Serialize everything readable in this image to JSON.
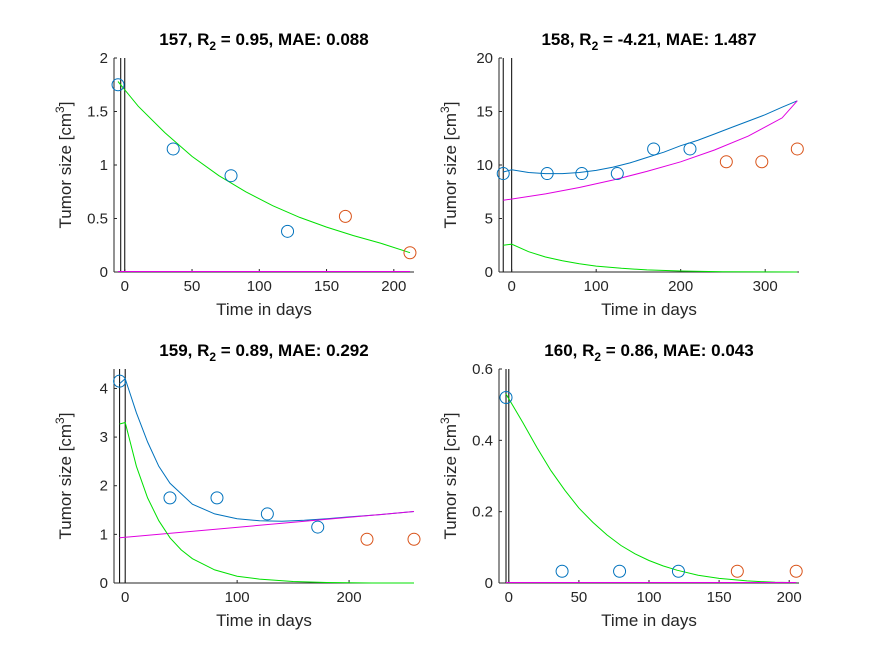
{
  "colors": {
    "measured": "#0072BD",
    "validation": "#D95319",
    "total": "#0072BD",
    "sensitive": "#00E000",
    "resistant": "#E000E0"
  },
  "chart_data": [
    {
      "type": "line",
      "title_id": "157",
      "title_r2": "= 0.95, MAE: 0.088",
      "xlabel": "Time in days",
      "ylabel": "Tumor size [cm",
      "ylabel_sup": "3",
      "ylabel_end": "]",
      "xlim": [
        -8,
        215
      ],
      "ylim": [
        0,
        2
      ],
      "xticks": [
        0,
        50,
        100,
        150,
        200
      ],
      "xtick_labels": [
        "0",
        "50",
        "100",
        "150",
        "200"
      ],
      "yticks": [
        0,
        0.5,
        1,
        1.5,
        2
      ],
      "ytick_labels": [
        "0",
        "0.5",
        "1",
        "1.5",
        "2"
      ],
      "vlines": [
        -3,
        0
      ],
      "measured": {
        "x": [
          -5,
          36,
          79,
          121
        ],
        "y": [
          1.75,
          1.15,
          0.9,
          0.38
        ]
      },
      "validation": {
        "x": [
          164,
          212
        ],
        "y": [
          0.52,
          0.18
        ]
      },
      "series": [
        {
          "key": "sensitive",
          "x": [
            -5,
            10,
            30,
            50,
            70,
            90,
            110,
            130,
            150,
            170,
            190,
            212
          ],
          "y": [
            1.78,
            1.55,
            1.3,
            1.08,
            0.9,
            0.75,
            0.62,
            0.51,
            0.42,
            0.34,
            0.27,
            0.18
          ]
        },
        {
          "key": "resistant",
          "x": [
            -5,
            212
          ],
          "y": [
            0.005,
            0.005
          ]
        }
      ]
    },
    {
      "type": "line",
      "title_id": "158",
      "title_r2": "= -4.21, MAE: 1.487",
      "xlabel": "Time in days",
      "ylabel": "Tumor size [cm",
      "ylabel_sup": "3",
      "ylabel_end": "]",
      "xlim": [
        -15,
        340
      ],
      "ylim": [
        0,
        20
      ],
      "xticks": [
        0,
        100,
        200,
        300
      ],
      "xtick_labels": [
        "0",
        "100",
        "200",
        "300"
      ],
      "yticks": [
        0,
        5,
        10,
        15,
        20
      ],
      "ytick_labels": [
        "0",
        "5",
        "10",
        "15",
        "20"
      ],
      "vlines": [
        -10,
        0
      ],
      "measured": {
        "x": [
          -10,
          42,
          83,
          125,
          168,
          211
        ],
        "y": [
          9.2,
          9.2,
          9.2,
          9.2,
          11.5,
          11.5
        ]
      },
      "validation": {
        "x": [
          254,
          296,
          338
        ],
        "y": [
          10.3,
          10.3,
          11.5
        ]
      },
      "series": [
        {
          "key": "total",
          "x": [
            -10,
            0,
            20,
            40,
            60,
            80,
            100,
            120,
            140,
            160,
            180,
            200,
            220,
            240,
            260,
            280,
            300,
            320,
            338
          ],
          "y": [
            9.35,
            9.55,
            9.3,
            9.2,
            9.2,
            9.3,
            9.5,
            9.8,
            10.2,
            10.7,
            11.2,
            11.8,
            12.3,
            12.9,
            13.5,
            14.1,
            14.7,
            15.4,
            16.0
          ]
        },
        {
          "key": "resistant",
          "x": [
            -10,
            40,
            80,
            120,
            160,
            200,
            240,
            280,
            320,
            338
          ],
          "y": [
            6.7,
            7.3,
            7.9,
            8.6,
            9.4,
            10.3,
            11.4,
            12.7,
            14.4,
            16.0
          ]
        },
        {
          "key": "sensitive",
          "x": [
            -10,
            0,
            20,
            40,
            60,
            80,
            100,
            130,
            160,
            200,
            250,
            338
          ],
          "y": [
            2.5,
            2.6,
            1.9,
            1.4,
            1.05,
            0.78,
            0.55,
            0.35,
            0.2,
            0.09,
            0.03,
            0.0
          ]
        }
      ]
    },
    {
      "type": "line",
      "title_id": "159",
      "title_r2": "= 0.89, MAE: 0.292",
      "xlabel": "Time in days",
      "ylabel": "Tumor size [cm",
      "ylabel_sup": "3",
      "ylabel_end": "]",
      "xlim": [
        -10,
        258
      ],
      "ylim": [
        0,
        4.4
      ],
      "xticks": [
        0,
        100,
        200
      ],
      "xtick_labels": [
        "0",
        "100",
        "200"
      ],
      "yticks": [
        0,
        1,
        2,
        3,
        4
      ],
      "ytick_labels": [
        "0",
        "1",
        "2",
        "3",
        "4"
      ],
      "vlines": [
        -5,
        0
      ],
      "measured": {
        "x": [
          -5,
          40,
          82,
          127,
          172
        ],
        "y": [
          4.15,
          1.75,
          1.75,
          1.42,
          1.15
        ]
      },
      "validation": {
        "x": [
          216,
          258
        ],
        "y": [
          0.9,
          0.9
        ]
      },
      "series": [
        {
          "key": "total",
          "x": [
            -5,
            0,
            10,
            20,
            30,
            40,
            60,
            80,
            100,
            120,
            140,
            160,
            180,
            200,
            230,
            258
          ],
          "y": [
            4.1,
            4.2,
            3.5,
            2.9,
            2.4,
            2.05,
            1.62,
            1.42,
            1.32,
            1.28,
            1.27,
            1.29,
            1.32,
            1.36,
            1.41,
            1.47
          ]
        },
        {
          "key": "resistant",
          "x": [
            -5,
            258
          ],
          "y": [
            0.93,
            1.47
          ]
        },
        {
          "key": "sensitive",
          "x": [
            -5,
            0,
            10,
            20,
            30,
            40,
            50,
            60,
            80,
            100,
            120,
            150,
            180,
            220,
            258
          ],
          "y": [
            3.27,
            3.3,
            2.4,
            1.75,
            1.28,
            0.93,
            0.68,
            0.5,
            0.27,
            0.14,
            0.08,
            0.03,
            0.01,
            0.0,
            0.0
          ]
        }
      ]
    },
    {
      "type": "line",
      "title_id": "160",
      "title_r2": "= 0.86, MAE: 0.043",
      "xlabel": "Time in days",
      "ylabel": "Tumor size [cm",
      "ylabel_sup": "3",
      "ylabel_end": "]",
      "xlim": [
        -7,
        207
      ],
      "ylim": [
        0,
        0.6
      ],
      "xticks": [
        0,
        50,
        100,
        150,
        200
      ],
      "xtick_labels": [
        "0",
        "50",
        "100",
        "150",
        "200"
      ],
      "yticks": [
        0,
        0.2,
        0.4,
        0.6
      ],
      "ytick_labels": [
        "0",
        "0.2",
        "0.4",
        "0.6"
      ],
      "vlines": [
        -2,
        0
      ],
      "measured": {
        "x": [
          -2,
          38,
          79,
          121
        ],
        "y": [
          0.52,
          0.033,
          0.033,
          0.033
        ]
      },
      "validation": {
        "x": [
          163,
          205
        ],
        "y": [
          0.033,
          0.033
        ]
      },
      "series": [
        {
          "key": "sensitive",
          "x": [
            -2,
            10,
            20,
            30,
            40,
            50,
            60,
            70,
            80,
            90,
            100,
            110,
            120,
            135,
            150,
            170,
            190,
            205
          ],
          "y": [
            0.53,
            0.45,
            0.38,
            0.315,
            0.26,
            0.21,
            0.17,
            0.135,
            0.105,
            0.082,
            0.063,
            0.048,
            0.036,
            0.022,
            0.013,
            0.006,
            0.002,
            0.001
          ]
        },
        {
          "key": "resistant",
          "x": [
            -2,
            205
          ],
          "y": [
            0.0015,
            0.0015
          ]
        }
      ]
    }
  ]
}
